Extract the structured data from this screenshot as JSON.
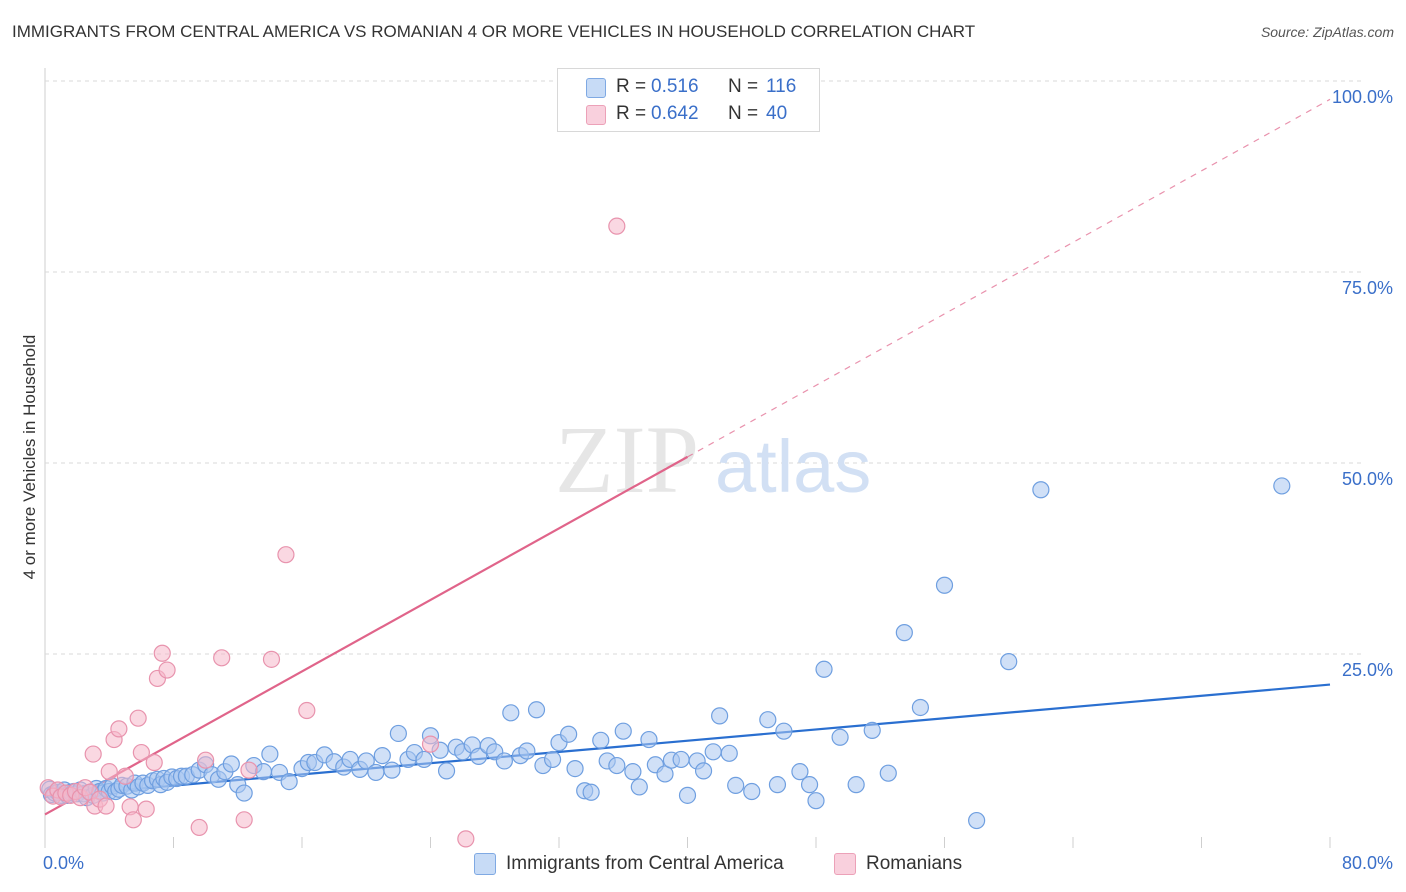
{
  "title": "IMMIGRANTS FROM CENTRAL AMERICA VS ROMANIAN 4 OR MORE VEHICLES IN HOUSEHOLD CORRELATION CHART",
  "source": "Source: ZipAtlas.com",
  "watermark": {
    "zip": "ZIP",
    "atlas": "atlas"
  },
  "legend_top": {
    "rows": [
      {
        "r_label": "R =",
        "r_value": "0.516",
        "n_label": "N =",
        "n_value": "116",
        "color": "#a9c7f0"
      },
      {
        "r_label": "R =",
        "r_value": "0.642",
        "n_label": "N =",
        "n_value": "40",
        "color": "#f6b8cb"
      }
    ]
  },
  "legend_bottom": {
    "items": [
      {
        "label": "Immigrants from Central America",
        "color": "#a9c7f0"
      },
      {
        "label": "Romanians",
        "color": "#f6b8cb"
      }
    ]
  },
  "colors": {
    "blue_fill": "#a9c7f0",
    "blue_stroke": "#6f9fe0",
    "blue_line": "#2a6fd0",
    "pink_fill": "#f6b8cb",
    "pink_stroke": "#e893ad",
    "pink_line": "#e0648a",
    "tick_text": "#3a6fc9",
    "grid": "#d8d8d8"
  },
  "chart_data": {
    "type": "scatter",
    "title": "IMMIGRANTS FROM CENTRAL AMERICA VS ROMANIAN 4 OR MORE VEHICLES IN HOUSEHOLD CORRELATION CHART",
    "xlabel": "",
    "ylabel": "4 or more Vehicles in Household",
    "xlim": [
      0,
      80
    ],
    "ylim": [
      0,
      100
    ],
    "x_ticks": [
      "0.0%",
      "80.0%"
    ],
    "y_ticks": [
      {
        "value": 25,
        "label": "25.0%"
      },
      {
        "value": 50,
        "label": "50.0%"
      },
      {
        "value": 75,
        "label": "75.0%"
      },
      {
        "value": 100,
        "label": "100.0%"
      }
    ],
    "grid": true,
    "legend_position": "top-center",
    "series": [
      {
        "name": "Immigrants from Central America",
        "color": "#a9c7f0",
        "trend": {
          "x": [
            0,
            80
          ],
          "y": [
            6.3,
            21.0
          ],
          "style": "solid"
        },
        "points": [
          [
            0.3,
            7.3
          ],
          [
            0.4,
            6.6
          ],
          [
            0.6,
            6.8
          ],
          [
            0.8,
            6.9
          ],
          [
            1.0,
            6.5
          ],
          [
            1.2,
            7.2
          ],
          [
            1.4,
            6.5
          ],
          [
            1.6,
            6.9
          ],
          [
            1.8,
            7.0
          ],
          [
            2.0,
            6.7
          ],
          [
            2.2,
            7.2
          ],
          [
            2.4,
            6.7
          ],
          [
            2.6,
            6.2
          ],
          [
            2.8,
            6.9
          ],
          [
            3.0,
            6.5
          ],
          [
            3.2,
            7.4
          ],
          [
            3.4,
            7.0
          ],
          [
            3.6,
            6.8
          ],
          [
            3.8,
            7.4
          ],
          [
            4.0,
            7.0
          ],
          [
            4.2,
            7.7
          ],
          [
            4.4,
            7.0
          ],
          [
            4.6,
            7.3
          ],
          [
            4.8,
            7.8
          ],
          [
            5.1,
            7.7
          ],
          [
            5.4,
            7.2
          ],
          [
            5.6,
            8.1
          ],
          [
            5.8,
            7.6
          ],
          [
            6.1,
            8.1
          ],
          [
            6.4,
            7.8
          ],
          [
            6.7,
            8.4
          ],
          [
            7.0,
            8.6
          ],
          [
            7.2,
            7.9
          ],
          [
            7.4,
            8.7
          ],
          [
            7.6,
            8.2
          ],
          [
            7.9,
            8.9
          ],
          [
            8.2,
            8.7
          ],
          [
            8.5,
            9.0
          ],
          [
            8.8,
            9.0
          ],
          [
            9.2,
            9.2
          ],
          [
            9.6,
            9.8
          ],
          [
            10.0,
            10.5
          ],
          [
            10.4,
            9.2
          ],
          [
            10.8,
            8.6
          ],
          [
            11.2,
            9.6
          ],
          [
            11.6,
            10.6
          ],
          [
            12.0,
            7.9
          ],
          [
            12.4,
            6.8
          ],
          [
            13.0,
            10.4
          ],
          [
            13.6,
            9.6
          ],
          [
            14.0,
            11.9
          ],
          [
            14.6,
            9.5
          ],
          [
            15.2,
            8.3
          ],
          [
            16.0,
            10.0
          ],
          [
            16.4,
            10.8
          ],
          [
            16.8,
            10.8
          ],
          [
            17.4,
            11.8
          ],
          [
            18.0,
            10.9
          ],
          [
            18.6,
            10.2
          ],
          [
            19.0,
            11.2
          ],
          [
            19.6,
            9.9
          ],
          [
            20.0,
            11.0
          ],
          [
            20.6,
            9.5
          ],
          [
            21.0,
            11.7
          ],
          [
            21.6,
            9.8
          ],
          [
            22.0,
            14.6
          ],
          [
            22.6,
            11.2
          ],
          [
            23.0,
            12.1
          ],
          [
            23.6,
            11.2
          ],
          [
            24.0,
            14.3
          ],
          [
            24.6,
            12.4
          ],
          [
            25.0,
            9.7
          ],
          [
            25.6,
            12.8
          ],
          [
            26.0,
            12.2
          ],
          [
            26.6,
            13.1
          ],
          [
            27.0,
            11.6
          ],
          [
            27.6,
            13.0
          ],
          [
            28.0,
            12.2
          ],
          [
            28.6,
            11.0
          ],
          [
            29.0,
            17.3
          ],
          [
            29.6,
            11.7
          ],
          [
            30.0,
            12.3
          ],
          [
            30.6,
            17.7
          ],
          [
            31.0,
            10.4
          ],
          [
            31.6,
            11.2
          ],
          [
            32.0,
            13.4
          ],
          [
            32.6,
            14.5
          ],
          [
            33.0,
            10.0
          ],
          [
            33.6,
            7.1
          ],
          [
            34.0,
            6.9
          ],
          [
            34.6,
            13.7
          ],
          [
            35.0,
            11.0
          ],
          [
            35.6,
            10.4
          ],
          [
            36.0,
            14.9
          ],
          [
            36.6,
            9.6
          ],
          [
            37.0,
            7.6
          ],
          [
            37.6,
            13.8
          ],
          [
            38.0,
            10.5
          ],
          [
            38.6,
            9.3
          ],
          [
            39.0,
            11.1
          ],
          [
            39.6,
            11.2
          ],
          [
            40.0,
            6.5
          ],
          [
            40.6,
            11.0
          ],
          [
            41.0,
            9.7
          ],
          [
            41.6,
            12.2
          ],
          [
            42.0,
            16.9
          ],
          [
            42.6,
            12.0
          ],
          [
            43.0,
            7.8
          ],
          [
            44.0,
            7.0
          ],
          [
            45.0,
            16.4
          ],
          [
            45.6,
            7.9
          ],
          [
            46.0,
            14.9
          ],
          [
            47.0,
            9.6
          ],
          [
            47.6,
            7.9
          ],
          [
            48.0,
            5.8
          ],
          [
            48.5,
            23.0
          ],
          [
            49.5,
            14.1
          ],
          [
            50.5,
            7.9
          ],
          [
            51.5,
            15.0
          ],
          [
            52.5,
            9.4
          ],
          [
            53.5,
            27.8
          ],
          [
            54.5,
            18.0
          ],
          [
            56.0,
            34.0
          ],
          [
            58.0,
            3.2
          ],
          [
            60.0,
            24.0
          ],
          [
            62.0,
            46.5
          ],
          [
            77.0,
            47.0
          ]
        ]
      },
      {
        "name": "Romanians",
        "color": "#f6b8cb",
        "trend": {
          "x": [
            0,
            40,
            80
          ],
          "y": [
            4.0,
            50.8,
            97.6
          ],
          "style": "solid-then-dashed"
        },
        "points": [
          [
            0.2,
            7.5
          ],
          [
            0.5,
            6.4
          ],
          [
            0.8,
            7.2
          ],
          [
            1.0,
            6.3
          ],
          [
            1.3,
            6.8
          ],
          [
            1.6,
            6.5
          ],
          [
            1.9,
            7.0
          ],
          [
            2.2,
            6.2
          ],
          [
            2.5,
            7.5
          ],
          [
            2.8,
            6.9
          ],
          [
            3.1,
            5.1
          ],
          [
            3.4,
            6.0
          ],
          [
            3.0,
            11.9
          ],
          [
            3.8,
            5.1
          ],
          [
            4.0,
            9.6
          ],
          [
            4.3,
            13.8
          ],
          [
            4.6,
            15.2
          ],
          [
            5.0,
            9.0
          ],
          [
            5.3,
            5.0
          ],
          [
            5.5,
            3.3
          ],
          [
            5.8,
            16.6
          ],
          [
            6.0,
            12.1
          ],
          [
            6.3,
            4.7
          ],
          [
            6.8,
            10.8
          ],
          [
            7.0,
            21.8
          ],
          [
            7.3,
            25.1
          ],
          [
            7.6,
            22.9
          ],
          [
            9.6,
            2.3
          ],
          [
            10.0,
            11.1
          ],
          [
            11.0,
            24.5
          ],
          [
            12.4,
            3.3
          ],
          [
            12.7,
            9.8
          ],
          [
            14.1,
            24.3
          ],
          [
            15.0,
            38.0
          ],
          [
            16.3,
            17.6
          ],
          [
            24.0,
            13.2
          ],
          [
            26.2,
            0.8
          ],
          [
            35.6,
            81.0
          ]
        ]
      }
    ]
  }
}
